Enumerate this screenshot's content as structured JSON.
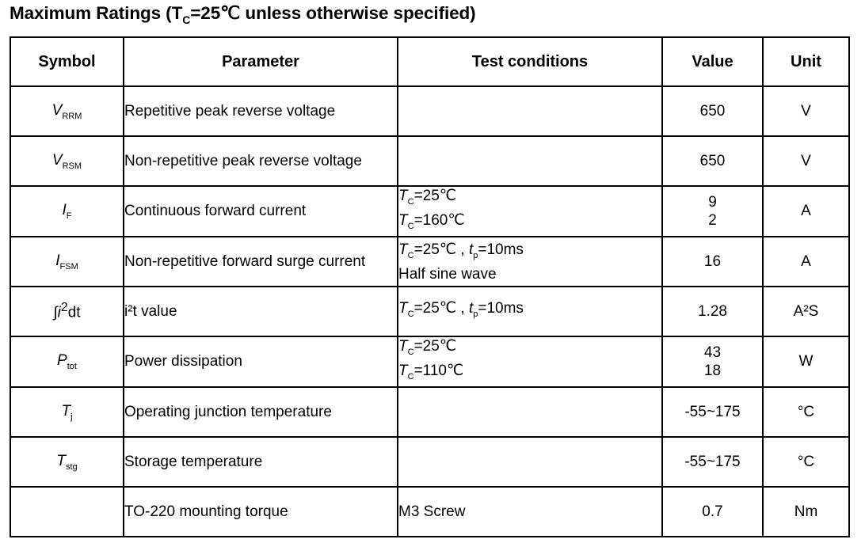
{
  "title": {
    "prefix": "Maximum Ratings (T",
    "sub": "C",
    "suffix": "=25℃ unless otherwise specified)"
  },
  "headers": {
    "symbol": "Symbol",
    "parameter": "Parameter",
    "test_conditions": "Test conditions",
    "value": "Value",
    "unit": "Unit"
  },
  "rows": [
    {
      "symbol": {
        "main": "V",
        "sub": "RRM"
      },
      "parameter": "Repetitive peak reverse voltage",
      "conditions": [],
      "values": [
        "650"
      ],
      "unit": "V"
    },
    {
      "symbol": {
        "main": "V",
        "sub": "RSM"
      },
      "parameter": "Non-repetitive peak reverse voltage",
      "conditions": [],
      "values": [
        "650"
      ],
      "unit": "V"
    },
    {
      "symbol": {
        "main": "I",
        "sub": "F"
      },
      "parameter": "Continuous forward current",
      "conditions": [
        {
          "v1": "T",
          "s1": "C",
          "t1": "=25℃"
        },
        {
          "v1": "T",
          "s1": "C",
          "t1": "=160℃"
        }
      ],
      "values": [
        "9",
        "2"
      ],
      "unit": "A"
    },
    {
      "symbol": {
        "main": "I",
        "sub": "FSM"
      },
      "parameter": "Non-repetitive forward surge current",
      "conditions": [
        {
          "v1": "T",
          "s1": "C",
          "t1": "=25℃ , ",
          "v2": "t",
          "s2": "p",
          "t2": "=10ms"
        },
        {
          "text": "Half sine wave"
        }
      ],
      "values": [
        "16"
      ],
      "unit": "A"
    },
    {
      "symbol": {
        "prefix": "∫",
        "main": "i",
        "sup": "2",
        "suffix": "dt"
      },
      "parameter": "i²t value",
      "conditions": [
        {
          "v1": "T",
          "s1": "C",
          "t1": "=25℃ , ",
          "v2": "t",
          "s2": "p",
          "t2": "=10ms"
        }
      ],
      "values": [
        "1.28"
      ],
      "unit": "A²S"
    },
    {
      "symbol": {
        "main": "P",
        "sub": "tot"
      },
      "parameter": "Power dissipation",
      "conditions": [
        {
          "v1": "T",
          "s1": "C",
          "t1": "=25℃"
        },
        {
          "v1": "T",
          "s1": "C",
          "t1": "=110℃"
        }
      ],
      "values": [
        "43",
        "18"
      ],
      "unit": "W"
    },
    {
      "symbol": {
        "main": "T",
        "sub": "j"
      },
      "parameter": "Operating junction temperature",
      "conditions": [],
      "values": [
        "-55~175"
      ],
      "unit": "°C"
    },
    {
      "symbol": {
        "main": "T",
        "sub": "stg"
      },
      "parameter": "Storage temperature",
      "conditions": [],
      "values": [
        "-55~175"
      ],
      "unit": "°C"
    },
    {
      "symbol": {},
      "parameter": "TO-220 mounting torque",
      "conditions": [
        {
          "text": "M3 Screw"
        }
      ],
      "values": [
        "0.7"
      ],
      "unit": "Nm"
    }
  ]
}
